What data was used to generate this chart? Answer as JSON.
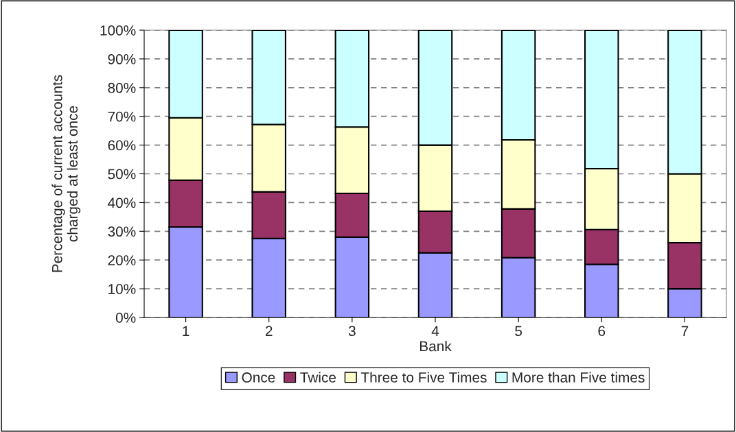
{
  "chart_data": {
    "type": "bar",
    "stacked": true,
    "xlabel": "Bank",
    "ylabel": "Percentage of current accounts\ncharged at least once",
    "categories": [
      "1",
      "2",
      "3",
      "4",
      "5",
      "6",
      "7"
    ],
    "series": [
      {
        "name": "Once",
        "color": "#9999ff",
        "values": [
          31.5,
          27.5,
          28,
          22.5,
          20.8,
          18.5,
          10
        ]
      },
      {
        "name": "Twice",
        "color": "#993366",
        "values": [
          16.3,
          16.2,
          15.2,
          14.5,
          17,
          12.1,
          16
        ]
      },
      {
        "name": "Three to Five Times",
        "color": "#ffffcc",
        "values": [
          21.7,
          23.5,
          23.1,
          23,
          24,
          21.2,
          24
        ]
      },
      {
        "name": "More than Five times",
        "color": "#ccffff",
        "values": [
          30.5,
          32.8,
          33.7,
          40,
          38.2,
          48.2,
          50
        ]
      }
    ],
    "ylim": [
      0,
      100
    ],
    "yticks": [
      {
        "value": 0,
        "label": "0%"
      },
      {
        "value": 10,
        "label": "10%"
      },
      {
        "value": 20,
        "label": "20%"
      },
      {
        "value": 30,
        "label": "30%"
      },
      {
        "value": 40,
        "label": "40%"
      },
      {
        "value": 50,
        "label": "50%"
      },
      {
        "value": 60,
        "label": "60%"
      },
      {
        "value": 70,
        "label": "70%"
      },
      {
        "value": 80,
        "label": "80%"
      },
      {
        "value": 90,
        "label": "90%"
      },
      {
        "value": 100,
        "label": "100%"
      }
    ],
    "grid": "y",
    "legend": "bottom"
  }
}
